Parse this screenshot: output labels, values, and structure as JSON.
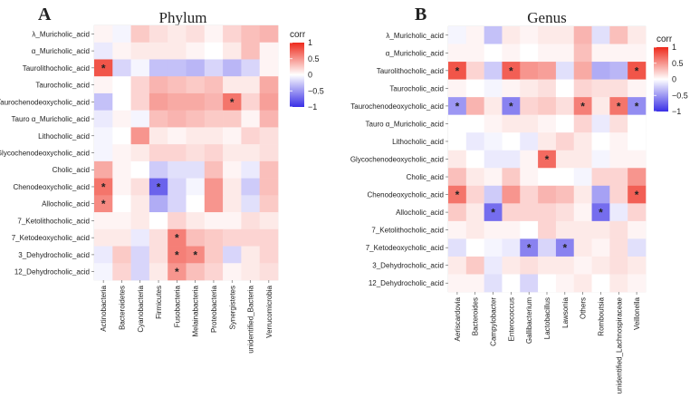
{
  "colors": {
    "low": "#3a2fe6",
    "mid": "#ffffff",
    "high": "#ee2a1c",
    "border": "#d9d9d9"
  },
  "chart_data": [
    {
      "type": "heatmap",
      "panel_label": "A",
      "title": "Phylum",
      "legend_title": "corr",
      "legend_ticks": [
        1,
        0.5,
        0,
        -0.5,
        -1
      ],
      "value_range": [
        -1,
        1
      ],
      "x_categories": [
        "Actinobacteria",
        "Bacteroidetes",
        "Cyanobacteria",
        "Firmicutes",
        "Fusobacteria",
        "Melainabacteria",
        "Proteobacteria",
        "Synergistetes",
        "unidentified_Bacteria",
        "Verrucomicrobia"
      ],
      "y_categories": [
        "λ_Muricholic_acid",
        "α_Muricholic_acid",
        "Taurolithocholic_acid",
        "Taurocholic_acid",
        "Taurochenodeoxycholic_acid",
        "Tauro α_Muricholic_acid",
        "Lithocholic_acid",
        "Glycochenodeoxycholic_acid",
        "Cholic_acid",
        "Chenodeoxycholic_acid",
        "Allocholic_acid",
        "7_Ketolithocholic_acid",
        "7_Ketodeoxycholic_acid",
        "3_Dehydrocholic_acid",
        "12_Dehydrocholic_acid"
      ],
      "values": [
        [
          0.05,
          -0.05,
          0.25,
          0.15,
          0.1,
          0.15,
          0.05,
          0.2,
          0.3,
          0.35
        ],
        [
          -0.1,
          0.05,
          0.1,
          0.1,
          0.1,
          0.05,
          0.0,
          0.1,
          0.3,
          0.05
        ],
        [
          0.8,
          -0.2,
          -0.05,
          -0.3,
          -0.3,
          -0.35,
          -0.2,
          -0.35,
          -0.2,
          0.05
        ],
        [
          0.05,
          0.0,
          0.2,
          0.35,
          0.3,
          0.25,
          0.3,
          0.1,
          0.1,
          0.4
        ],
        [
          -0.3,
          0.0,
          0.2,
          0.45,
          0.4,
          0.4,
          0.35,
          0.65,
          0.2,
          0.45
        ],
        [
          -0.1,
          0.05,
          -0.05,
          0.3,
          0.35,
          0.3,
          0.25,
          0.25,
          0.05,
          0.35
        ],
        [
          -0.05,
          0.0,
          0.5,
          0.1,
          0.05,
          0.1,
          0.1,
          0.05,
          0.2,
          0.15
        ],
        [
          -0.05,
          0.05,
          0.1,
          0.2,
          0.2,
          0.15,
          0.2,
          0.1,
          0.1,
          0.15
        ],
        [
          0.4,
          0.05,
          0.0,
          -0.25,
          -0.15,
          -0.15,
          0.3,
          0.05,
          -0.1,
          0.3
        ],
        [
          0.65,
          0.05,
          0.15,
          -0.75,
          -0.2,
          -0.05,
          0.5,
          0.1,
          -0.25,
          0.3
        ],
        [
          0.55,
          0.0,
          0.1,
          -0.4,
          -0.2,
          0.0,
          0.5,
          0.1,
          -0.15,
          0.25
        ],
        [
          0.05,
          0.05,
          0.1,
          0.0,
          0.2,
          0.1,
          0.05,
          0.05,
          0.15,
          0.1
        ],
        [
          0.1,
          0.1,
          -0.1,
          0.15,
          0.6,
          0.3,
          0.25,
          0.2,
          0.2,
          0.2
        ],
        [
          -0.1,
          0.25,
          -0.2,
          0.15,
          0.6,
          0.55,
          0.25,
          -0.2,
          0.1,
          0.2
        ],
        [
          -0.05,
          0.2,
          -0.2,
          0.1,
          0.5,
          0.3,
          0.2,
          0.05,
          0.1,
          0.15
        ]
      ],
      "significant": [
        [
          2,
          0
        ],
        [
          4,
          7
        ],
        [
          9,
          0
        ],
        [
          9,
          3
        ],
        [
          10,
          0
        ],
        [
          12,
          4
        ],
        [
          13,
          4
        ],
        [
          13,
          5
        ],
        [
          14,
          4
        ]
      ],
      "marker_symbol": "*"
    },
    {
      "type": "heatmap",
      "panel_label": "B",
      "title": "Genus",
      "legend_title": "corr",
      "legend_ticks": [
        1,
        0.5,
        0,
        -0.5,
        -1
      ],
      "value_range": [
        -1,
        1
      ],
      "x_categories": [
        "Aeriscardovia",
        "Bacteroides",
        "Campylobacter",
        "Enterococcus",
        "Gallibacterium",
        "Lactobacillus",
        "Lawsonia",
        "Others",
        "Romboutsia",
        "unidentified_Lachnospiraceae",
        "Veillonella"
      ],
      "y_categories": [
        "λ_Muricholic_acid",
        "α_Muricholic_acid",
        "Taurolithocholic_acid",
        "Taurocholic_acid",
        "Taurochenodeoxycholic_acid",
        "Tauro α_Muricholic_acid",
        "Lithocholic_acid",
        "Glycochenodeoxycholic_acid",
        "Cholic_acid",
        "Chenodeoxycholic_acid",
        "Allocholic_acid",
        "7_Ketolithocholic_acid",
        "7_Ketodeoxycholic_acid",
        "3_Dehydrocholic_acid",
        "12_Dehydrocholic_acid"
      ],
      "values": [
        [
          -0.05,
          0.05,
          -0.3,
          0.1,
          0.05,
          0.1,
          0.1,
          0.35,
          -0.15,
          0.3,
          0.1
        ],
        [
          0.05,
          0.05,
          0.0,
          0.05,
          0.0,
          0.05,
          0.05,
          0.3,
          0.05,
          0.05,
          0.05
        ],
        [
          0.8,
          0.2,
          -0.25,
          0.75,
          0.5,
          0.45,
          -0.15,
          0.4,
          -0.4,
          -0.35,
          0.8
        ],
        [
          0.05,
          0.0,
          -0.05,
          0.05,
          0.1,
          0.15,
          0.0,
          0.2,
          0.15,
          0.15,
          0.05
        ],
        [
          -0.5,
          0.35,
          0.1,
          -0.6,
          0.2,
          0.25,
          0.15,
          0.6,
          0.1,
          0.65,
          -0.55
        ],
        [
          0.0,
          0.0,
          0.05,
          0.1,
          0.1,
          0.05,
          0.0,
          0.2,
          -0.1,
          0.15,
          0.0
        ],
        [
          0.0,
          -0.1,
          -0.05,
          0.0,
          -0.1,
          0.1,
          0.2,
          0.1,
          0.0,
          0.05,
          0.0
        ],
        [
          0.1,
          0.0,
          -0.1,
          -0.1,
          0.05,
          0.7,
          0.1,
          0.1,
          -0.05,
          0.05,
          0.05
        ],
        [
          0.3,
          0.1,
          0.05,
          0.25,
          0.05,
          0.0,
          0.0,
          -0.05,
          0.2,
          0.2,
          0.5
        ],
        [
          0.65,
          0.2,
          -0.25,
          0.5,
          0.2,
          0.35,
          0.3,
          0.1,
          -0.45,
          0.2,
          0.75
        ],
        [
          0.25,
          0.1,
          -0.7,
          0.2,
          0.2,
          0.2,
          0.15,
          0.05,
          -0.7,
          -0.1,
          0.2
        ],
        [
          0.05,
          0.1,
          0.05,
          0.05,
          0.0,
          0.2,
          0.1,
          0.1,
          0.1,
          0.15,
          0.05
        ],
        [
          -0.15,
          0.0,
          -0.05,
          -0.1,
          -0.6,
          -0.2,
          -0.6,
          0.1,
          0.05,
          0.15,
          -0.15
        ],
        [
          0.1,
          0.25,
          -0.1,
          0.1,
          0.15,
          0.1,
          0.1,
          0.05,
          0.1,
          0.15,
          0.1
        ],
        [
          0.05,
          0.05,
          -0.15,
          0.0,
          -0.2,
          0.0,
          0.05,
          0.1,
          0.0,
          0.1,
          0.05
        ]
      ],
      "significant": [
        [
          2,
          0
        ],
        [
          2,
          3
        ],
        [
          2,
          10
        ],
        [
          4,
          0
        ],
        [
          4,
          3
        ],
        [
          4,
          7
        ],
        [
          4,
          9
        ],
        [
          4,
          10
        ],
        [
          7,
          5
        ],
        [
          9,
          0
        ],
        [
          9,
          10
        ],
        [
          10,
          2
        ],
        [
          10,
          8
        ],
        [
          12,
          4
        ],
        [
          12,
          6
        ]
      ],
      "marker_symbol": "*"
    }
  ]
}
